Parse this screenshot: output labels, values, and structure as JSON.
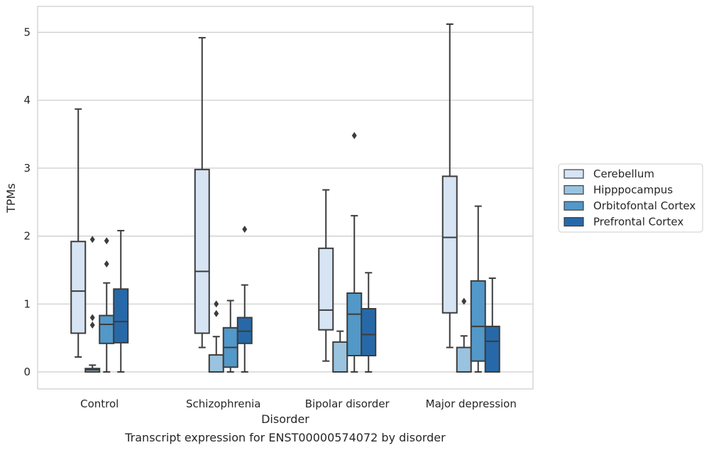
{
  "chart_data": {
    "type": "box",
    "title": "",
    "caption": "Transcript expression for ENST00000574072 by disorder",
    "xlabel": "Disorder",
    "ylabel": "TPMs",
    "ylim": [
      -0.25,
      5.4
    ],
    "yticks": [
      "0",
      "1",
      "2",
      "3",
      "4",
      "5"
    ],
    "grid": "horizontal",
    "legend_position": "right",
    "categories": [
      "Control",
      "Schizophrenia",
      "Bipolar disorder",
      "Major depression"
    ],
    "series": [
      {
        "name": "Cerebellum",
        "color": "#d6e4f3",
        "boxes": [
          {
            "whislo": 0.22,
            "q1": 0.57,
            "med": 1.19,
            "q3": 1.92,
            "whishi": 3.87,
            "fliers": []
          },
          {
            "whislo": 0.36,
            "q1": 0.57,
            "med": 1.48,
            "q3": 2.98,
            "whishi": 4.92,
            "fliers": []
          },
          {
            "whislo": 0.16,
            "q1": 0.62,
            "med": 0.91,
            "q3": 1.82,
            "whishi": 2.68,
            "fliers": []
          },
          {
            "whislo": 0.36,
            "q1": 0.87,
            "med": 1.98,
            "q3": 2.88,
            "whishi": 5.12,
            "fliers": []
          }
        ]
      },
      {
        "name": "Hipppocampus",
        "color": "#9ac3df",
        "boxes": [
          {
            "whislo": 0.0,
            "q1": 0.0,
            "med": 0.03,
            "q3": 0.05,
            "whishi": 0.1,
            "fliers": [
              0.69,
              0.8,
              1.95
            ]
          },
          {
            "whislo": 0.0,
            "q1": 0.0,
            "med": 0.0,
            "q3": 0.25,
            "whishi": 0.52,
            "fliers": [
              0.86,
              1.0
            ]
          },
          {
            "whislo": 0.0,
            "q1": 0.0,
            "med": 0.0,
            "q3": 0.44,
            "whishi": 0.6,
            "fliers": []
          },
          {
            "whislo": 0.0,
            "q1": 0.0,
            "med": 0.0,
            "q3": 0.36,
            "whishi": 0.53,
            "fliers": [
              1.04
            ]
          }
        ]
      },
      {
        "name": "Orbitofontal Cortex",
        "color": "#5298c8",
        "boxes": [
          {
            "whislo": 0.0,
            "q1": 0.42,
            "med": 0.7,
            "q3": 0.83,
            "whishi": 1.31,
            "fliers": [
              1.59,
              1.93
            ]
          },
          {
            "whislo": 0.0,
            "q1": 0.07,
            "med": 0.36,
            "q3": 0.65,
            "whishi": 1.05,
            "fliers": []
          },
          {
            "whislo": 0.0,
            "q1": 0.24,
            "med": 0.85,
            "q3": 1.16,
            "whishi": 2.3,
            "fliers": [
              3.48
            ]
          },
          {
            "whislo": 0.0,
            "q1": 0.16,
            "med": 0.67,
            "q3": 1.34,
            "whishi": 2.44,
            "fliers": []
          }
        ]
      },
      {
        "name": "Prefrontal Cortex",
        "color": "#2769a8",
        "boxes": [
          {
            "whislo": 0.0,
            "q1": 0.43,
            "med": 0.74,
            "q3": 1.22,
            "whishi": 2.08,
            "fliers": []
          },
          {
            "whislo": 0.0,
            "q1": 0.42,
            "med": 0.6,
            "q3": 0.8,
            "whishi": 1.28,
            "fliers": [
              2.1
            ]
          },
          {
            "whislo": 0.0,
            "q1": 0.24,
            "med": 0.55,
            "q3": 0.93,
            "whishi": 1.46,
            "fliers": []
          },
          {
            "whislo": 0.0,
            "q1": 0.0,
            "med": 0.45,
            "q3": 0.67,
            "whishi": 1.38,
            "fliers": []
          }
        ]
      }
    ]
  }
}
